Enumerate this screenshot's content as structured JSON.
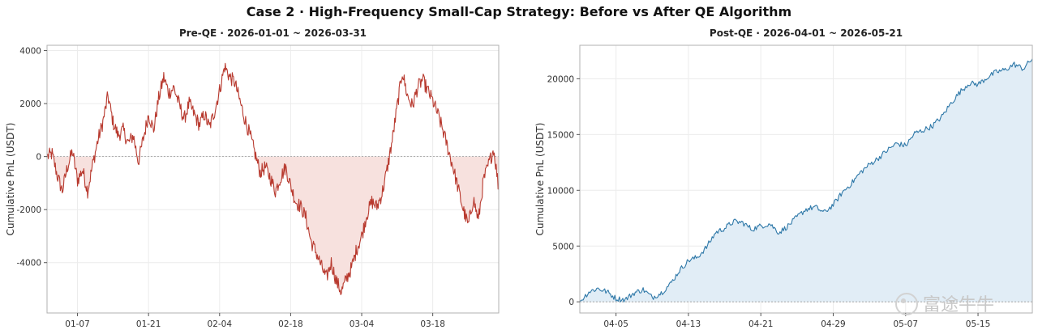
{
  "figure": {
    "title": "Case 2  ·  High-Frequency Small-Cap Strategy: Before vs After QE Algorithm",
    "watermark": "富途牛牛"
  },
  "chart_data": [
    {
      "type": "line",
      "title": "Pre-QE  ·  2026-01-01 ~ 2026-03-31",
      "xlabel": "",
      "ylabel": "Cumulative PnL (USDT)",
      "x_range": [
        "2026-01-01",
        "2026-03-31"
      ],
      "ylim": [
        -5900,
        4200
      ],
      "yticks": [
        -4000,
        -2000,
        0,
        2000,
        4000
      ],
      "xticks": [
        "01-07",
        "01-21",
        "02-04",
        "02-18",
        "03-04",
        "03-18"
      ],
      "xtick_dates": [
        "2026-01-07",
        "2026-01-21",
        "2026-02-04",
        "2026-02-18",
        "2026-03-04",
        "2026-03-18"
      ],
      "grid": true,
      "baseline": 0,
      "fill_below_zero": true,
      "line_color": "#b83a2f",
      "fill_color": "#f7e1de",
      "series": [
        {
          "points": [
            [
              "2026-01-01",
              0
            ],
            [
              "2026-01-02",
              100
            ],
            [
              "2026-01-03",
              -700
            ],
            [
              "2026-01-04",
              -1300
            ],
            [
              "2026-01-05",
              -400
            ],
            [
              "2026-01-06",
              200
            ],
            [
              "2026-01-07",
              -900
            ],
            [
              "2026-01-08",
              -500
            ],
            [
              "2026-01-09",
              -1300
            ],
            [
              "2026-01-10",
              -300
            ],
            [
              "2026-01-11",
              600
            ],
            [
              "2026-01-12",
              1300
            ],
            [
              "2026-01-13",
              2300
            ],
            [
              "2026-01-14",
              1300
            ],
            [
              "2026-01-15",
              800
            ],
            [
              "2026-01-16",
              1000
            ],
            [
              "2026-01-17",
              500
            ],
            [
              "2026-01-18",
              800
            ],
            [
              "2026-01-19",
              -200
            ],
            [
              "2026-01-20",
              700
            ],
            [
              "2026-01-21",
              1600
            ],
            [
              "2026-01-22",
              1000
            ],
            [
              "2026-01-23",
              2200
            ],
            [
              "2026-01-24",
              3000
            ],
            [
              "2026-01-25",
              2400
            ],
            [
              "2026-01-26",
              2600
            ],
            [
              "2026-01-27",
              2000
            ],
            [
              "2026-01-28",
              1400
            ],
            [
              "2026-01-29",
              2000
            ],
            [
              "2026-01-30",
              1600
            ],
            [
              "2026-01-31",
              1200
            ],
            [
              "2026-02-01",
              1600
            ],
            [
              "2026-02-02",
              1100
            ],
            [
              "2026-02-03",
              1700
            ],
            [
              "2026-02-04",
              2500
            ],
            [
              "2026-02-05",
              3400
            ],
            [
              "2026-02-06",
              3000
            ],
            [
              "2026-02-07",
              2800
            ],
            [
              "2026-02-08",
              2100
            ],
            [
              "2026-02-09",
              1400
            ],
            [
              "2026-02-10",
              800
            ],
            [
              "2026-02-11",
              100
            ],
            [
              "2026-02-12",
              -600
            ],
            [
              "2026-02-13",
              -400
            ],
            [
              "2026-02-14",
              -800
            ],
            [
              "2026-02-15",
              -1300
            ],
            [
              "2026-02-16",
              -800
            ],
            [
              "2026-02-17",
              -400
            ],
            [
              "2026-02-18",
              -1100
            ],
            [
              "2026-02-19",
              -1700
            ],
            [
              "2026-02-20",
              -1900
            ],
            [
              "2026-02-21",
              -2300
            ],
            [
              "2026-02-22",
              -3200
            ],
            [
              "2026-02-23",
              -3600
            ],
            [
              "2026-02-24",
              -4100
            ],
            [
              "2026-02-25",
              -4600
            ],
            [
              "2026-02-26",
              -4000
            ],
            [
              "2026-02-27",
              -4700
            ],
            [
              "2026-02-28",
              -5100
            ],
            [
              "2026-03-01",
              -4600
            ],
            [
              "2026-03-02",
              -4200
            ],
            [
              "2026-03-03",
              -3500
            ],
            [
              "2026-03-04",
              -3000
            ],
            [
              "2026-03-05",
              -2200
            ],
            [
              "2026-03-06",
              -1700
            ],
            [
              "2026-03-07",
              -1900
            ],
            [
              "2026-03-08",
              -1400
            ],
            [
              "2026-03-09",
              -500
            ],
            [
              "2026-03-10",
              600
            ],
            [
              "2026-03-11",
              1900
            ],
            [
              "2026-03-12",
              3200
            ],
            [
              "2026-03-13",
              2300
            ],
            [
              "2026-03-14",
              1900
            ],
            [
              "2026-03-15",
              2600
            ],
            [
              "2026-03-16",
              2900
            ],
            [
              "2026-03-17",
              2500
            ],
            [
              "2026-03-18",
              2100
            ],
            [
              "2026-03-19",
              1600
            ],
            [
              "2026-03-20",
              1000
            ],
            [
              "2026-03-21",
              300
            ],
            [
              "2026-03-22",
              -400
            ],
            [
              "2026-03-23",
              -1200
            ],
            [
              "2026-03-24",
              -2000
            ],
            [
              "2026-03-25",
              -2600
            ],
            [
              "2026-03-26",
              -1600
            ],
            [
              "2026-03-27",
              -2400
            ],
            [
              "2026-03-28",
              -900
            ],
            [
              "2026-03-29",
              -300
            ],
            [
              "2026-03-30",
              300
            ],
            [
              "2026-03-31",
              -1200
            ]
          ]
        }
      ]
    },
    {
      "type": "area",
      "title": "Post-QE  ·  2026-04-01 ~ 2026-05-21",
      "xlabel": "",
      "ylabel": "Cumulative PnL (USDT)",
      "x_range": [
        "2026-04-01",
        "2026-05-21"
      ],
      "ylim": [
        -1000,
        23000
      ],
      "yticks": [
        0,
        5000,
        10000,
        15000,
        20000
      ],
      "xticks": [
        "04-05",
        "04-13",
        "04-21",
        "04-29",
        "05-07",
        "05-15"
      ],
      "xtick_dates": [
        "2026-04-05",
        "2026-04-13",
        "2026-04-21",
        "2026-04-29",
        "2026-05-07",
        "2026-05-15"
      ],
      "grid": true,
      "baseline": 0,
      "line_color": "#2e78a8",
      "fill_color": "#e1edf6",
      "series": [
        {
          "points": [
            [
              "2026-04-01",
              0
            ],
            [
              "2026-04-02",
              900
            ],
            [
              "2026-04-03",
              1200
            ],
            [
              "2026-04-04",
              900
            ],
            [
              "2026-04-05",
              300
            ],
            [
              "2026-04-06",
              200
            ],
            [
              "2026-04-07",
              800
            ],
            [
              "2026-04-08",
              1100
            ],
            [
              "2026-04-09",
              400
            ],
            [
              "2026-04-10",
              800
            ],
            [
              "2026-04-11",
              1600
            ],
            [
              "2026-04-12",
              2800
            ],
            [
              "2026-04-13",
              3700
            ],
            [
              "2026-04-14",
              4000
            ],
            [
              "2026-04-15",
              4900
            ],
            [
              "2026-04-16",
              6200
            ],
            [
              "2026-04-17",
              6600
            ],
            [
              "2026-04-18",
              7200
            ],
            [
              "2026-04-19",
              7100
            ],
            [
              "2026-04-20",
              6500
            ],
            [
              "2026-04-21",
              6800
            ],
            [
              "2026-04-22",
              7000
            ],
            [
              "2026-04-23",
              6200
            ],
            [
              "2026-04-24",
              6800
            ],
            [
              "2026-04-25",
              7600
            ],
            [
              "2026-04-26",
              8300
            ],
            [
              "2026-04-27",
              8500
            ],
            [
              "2026-04-28",
              8000
            ],
            [
              "2026-04-29",
              8700
            ],
            [
              "2026-04-30",
              9800
            ],
            [
              "2026-05-01",
              10600
            ],
            [
              "2026-05-02",
              11600
            ],
            [
              "2026-05-03",
              12300
            ],
            [
              "2026-05-04",
              12900
            ],
            [
              "2026-05-05",
              13600
            ],
            [
              "2026-05-06",
              14200
            ],
            [
              "2026-05-07",
              14000
            ],
            [
              "2026-05-08",
              15100
            ],
            [
              "2026-05-09",
              15400
            ],
            [
              "2026-05-10",
              15800
            ],
            [
              "2026-05-11",
              16600
            ],
            [
              "2026-05-12",
              17800
            ],
            [
              "2026-05-13",
              18800
            ],
            [
              "2026-05-14",
              19600
            ],
            [
              "2026-05-15",
              19500
            ],
            [
              "2026-05-16",
              20100
            ],
            [
              "2026-05-17",
              20600
            ],
            [
              "2026-05-18",
              20800
            ],
            [
              "2026-05-19",
              21300
            ],
            [
              "2026-05-20",
              20900
            ],
            [
              "2026-05-21",
              21800
            ]
          ]
        }
      ]
    }
  ]
}
